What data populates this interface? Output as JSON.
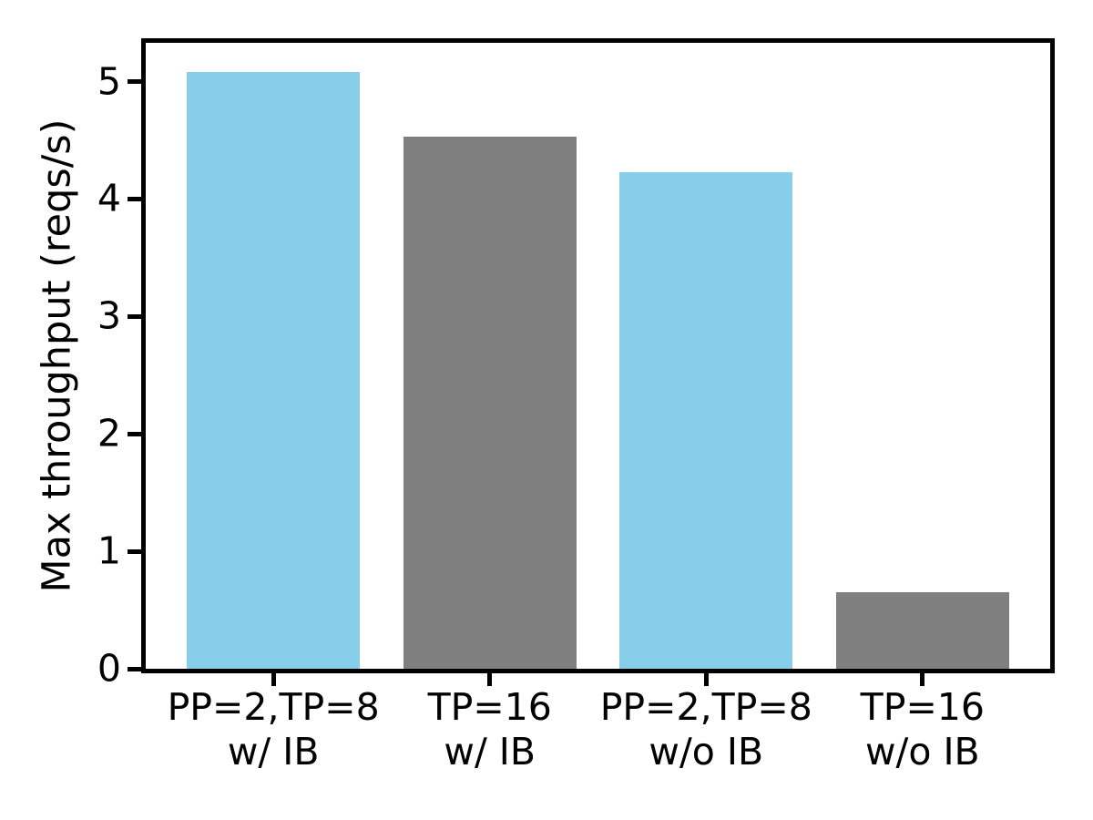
{
  "chart_data": {
    "type": "bar",
    "title": "",
    "xlabel": "",
    "ylabel": "Max throughput (reqs/s)",
    "categories": [
      [
        "PP=2,TP=8",
        "w/ IB"
      ],
      [
        "TP=16",
        "w/ IB"
      ],
      [
        "PP=2,TP=8",
        "w/o IB"
      ],
      [
        "TP=16",
        "w/o IB"
      ]
    ],
    "values": [
      5.08,
      4.53,
      4.23,
      0.65
    ],
    "bar_colors": [
      "#87ceeb",
      "#7f7f7f",
      "#87ceeb",
      "#7f7f7f"
    ],
    "bar_width": 0.8,
    "xlim": [
      -0.59,
      3.59
    ],
    "ylim": [
      0,
      5.33
    ],
    "yticks": [
      0,
      1,
      2,
      3,
      4,
      5
    ],
    "grid": false,
    "legend": null
  },
  "colors": {
    "axis": "#000000",
    "text": "#000000",
    "background": "#ffffff",
    "bar_blue": "#87ceeb",
    "bar_gray": "#7f7f7f"
  }
}
